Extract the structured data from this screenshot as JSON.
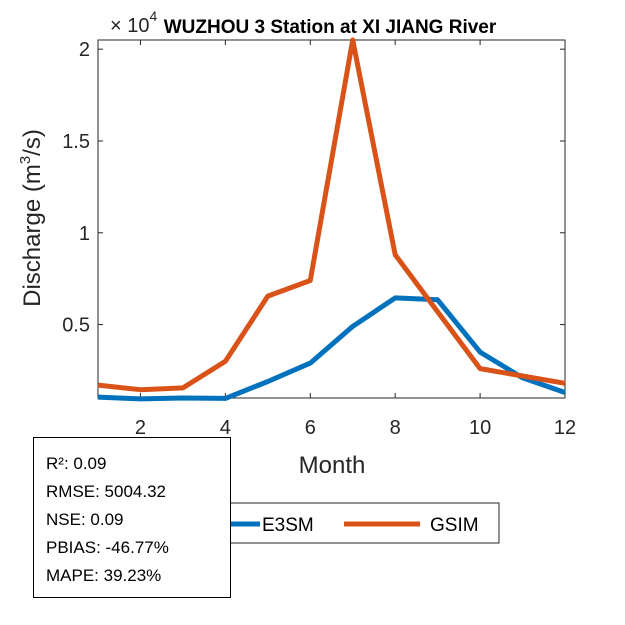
{
  "chart_data": {
    "type": "line",
    "title": "WUZHOU 3  Station at  XI JIANG  River",
    "xlabel": "Month",
    "ylabel_base": "Discharge (m",
    "ylabel_sup": "3",
    "ylabel_end": "/s)",
    "y_exponent_prefix": "× 10",
    "y_exponent": "4",
    "xlim": [
      1,
      12
    ],
    "ylim": [
      0.1,
      2.05
    ],
    "xticks": [
      2,
      4,
      6,
      8,
      10,
      12
    ],
    "xtick_labels": [
      "2",
      "4",
      "6",
      "8",
      "10",
      "12"
    ],
    "yticks": [
      0.5,
      1,
      1.5,
      2
    ],
    "ytick_labels": [
      "0.5",
      "1",
      "1.5",
      "2"
    ],
    "x": [
      1,
      2,
      3,
      4,
      5,
      6,
      7,
      8,
      9,
      10,
      11,
      12
    ],
    "series": [
      {
        "name": "E3SM",
        "color": "#0072BD",
        "values": [
          0.105,
          0.095,
          0.1,
          0.098,
          0.19,
          0.29,
          0.49,
          0.645,
          0.635,
          0.35,
          0.21,
          0.13
        ]
      },
      {
        "name": "GSIM",
        "color": "#D95319",
        "values": [
          0.17,
          0.145,
          0.155,
          0.3,
          0.655,
          0.74,
          2.05,
          0.88,
          0.57,
          0.26,
          0.22,
          0.18
        ]
      }
    ],
    "legend_position": "bottom"
  },
  "stats": [
    "R²: 0.09",
    "RMSE: 5004.32",
    "NSE: 0.09",
    "PBIAS: -46.77%",
    "MAPE: 39.23%"
  ]
}
